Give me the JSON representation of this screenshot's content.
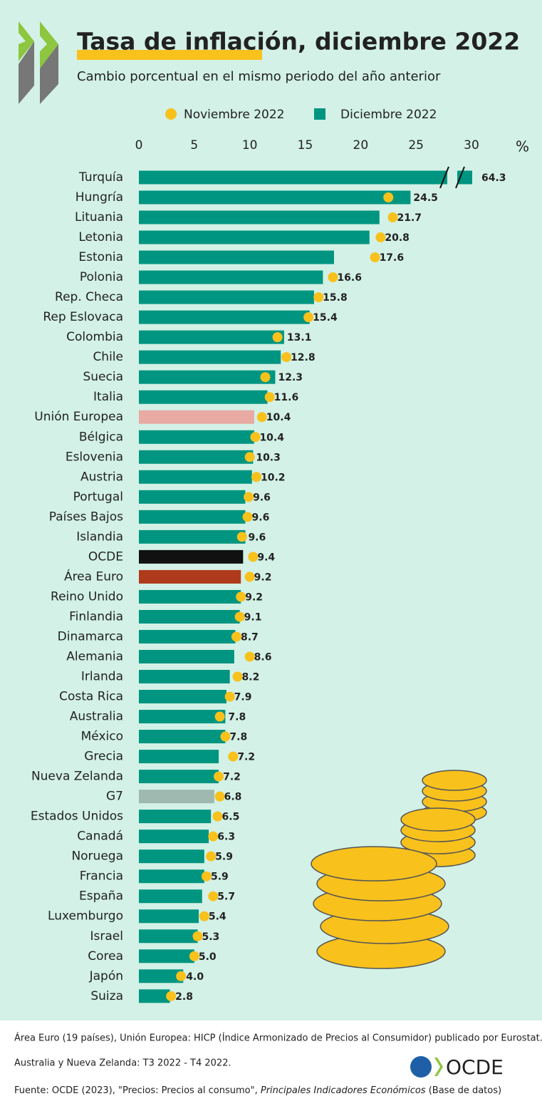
{
  "chart_data": {
    "type": "bar",
    "title": "Tasa de inflación, diciembre 2022",
    "subtitle": "Cambio porcentual en el mismo periodo del año anterior",
    "unit": "%",
    "axis_break": true,
    "categories": [
      "Turquía",
      "Hungría",
      "Lituania",
      "Letonia",
      "Estonia",
      "Polonia",
      "Rep. Checa",
      "Rep Eslovaca",
      "Colombia",
      "Chile",
      "Suecia",
      "Italia",
      "Unión Europea",
      "Bélgica",
      "Eslovenia",
      "Austria",
      "Portugal",
      "Países Bajos",
      "Islandia",
      "OCDE",
      "Área Euro",
      "Reino Unido",
      "Finlandia",
      "Dinamarca",
      "Alemania",
      "Irlanda",
      "Costa Rica",
      "Australia",
      "México",
      "Grecia",
      "Nueva Zelanda",
      "G7",
      "Estados Unidos",
      "Canadá",
      "Noruega",
      "Francia",
      "España",
      "Luxemburgo",
      "Israel",
      "Corea",
      "Japón",
      "Suiza"
    ],
    "series": [
      {
        "name": "Noviembre 2022",
        "color": "#f8c11c",
        "values": [
          null,
          22.5,
          22.9,
          21.8,
          21.3,
          17.5,
          16.2,
          15.3,
          12.5,
          13.3,
          11.4,
          11.8,
          11.1,
          10.5,
          10.0,
          10.6,
          9.9,
          9.8,
          9.3,
          10.3,
          10.0,
          9.2,
          9.1,
          8.8,
          10.0,
          8.9,
          8.2,
          7.3,
          7.8,
          8.5,
          7.2,
          7.3,
          7.1,
          6.7,
          6.5,
          6.1,
          6.7,
          5.9,
          5.3,
          5.0,
          3.8,
          2.9
        ]
      },
      {
        "name": "Diciembre 2022",
        "color": "#009580",
        "colors": [
          "#009580",
          "#009580",
          "#009580",
          "#009580",
          "#009580",
          "#009580",
          "#009580",
          "#009580",
          "#009580",
          "#009580",
          "#009580",
          "#009580",
          "#e8aaa3",
          "#009580",
          "#009580",
          "#009580",
          "#009580",
          "#009580",
          "#009580",
          "#111111",
          "#b03a1c",
          "#009580",
          "#009580",
          "#009580",
          "#009580",
          "#009580",
          "#009580",
          "#009580",
          "#009580",
          "#009580",
          "#009580",
          "#9fb9b1",
          "#009580",
          "#009580",
          "#009580",
          "#009580",
          "#009580",
          "#009580",
          "#009580",
          "#009580",
          "#009580",
          "#009580"
        ],
        "values": [
          64.3,
          24.5,
          21.7,
          20.8,
          17.6,
          16.6,
          15.8,
          15.4,
          13.1,
          12.8,
          12.3,
          11.6,
          10.4,
          10.4,
          10.3,
          10.2,
          9.6,
          9.6,
          9.6,
          9.4,
          9.2,
          9.2,
          9.1,
          8.7,
          8.6,
          8.2,
          7.9,
          7.8,
          7.8,
          7.2,
          7.2,
          6.8,
          6.5,
          6.3,
          5.9,
          5.9,
          5.7,
          5.4,
          5.3,
          5.0,
          4.0,
          2.8
        ],
        "value_labels": [
          "64.3",
          "24.5",
          "21.7",
          "20.8",
          "17.6",
          "16.6",
          "15.8",
          "15.4",
          "13.1",
          "12.8",
          "12.3",
          "11.6",
          "10.4",
          "10.4",
          "10.3",
          "10.2",
          "9.6",
          "9.6",
          "9.6",
          "9.4",
          "9.2",
          "9.2",
          "9.1",
          "8.7",
          "8.6",
          "8.2",
          "7.9",
          "7.8",
          "7.8",
          "7.2",
          "7.2",
          "6.8",
          "6.5",
          "6.3",
          "5.9",
          "5.9",
          "5.7",
          "5.4",
          "5.3",
          "5.0",
          "4.0",
          "2.8"
        ]
      }
    ],
    "xlim": [
      0,
      30
    ],
    "xticks": [
      0,
      5,
      10,
      15,
      20,
      25,
      30
    ],
    "notes": [
      "Área Euro (19 países), Unión Europea: HICP (Índice Armonizado de Precios al Consumidor) publicado por Eurostat.",
      "Australia y Nueva Zelanda: T3 2022 - T4 2022."
    ],
    "source": [
      "Fuente: OCDE (2023), \"Precios: Precios al consumo\", ",
      "Principales Indicadores Económicos",
      " (Base de datos)"
    ],
    "logo": "OCDE"
  }
}
